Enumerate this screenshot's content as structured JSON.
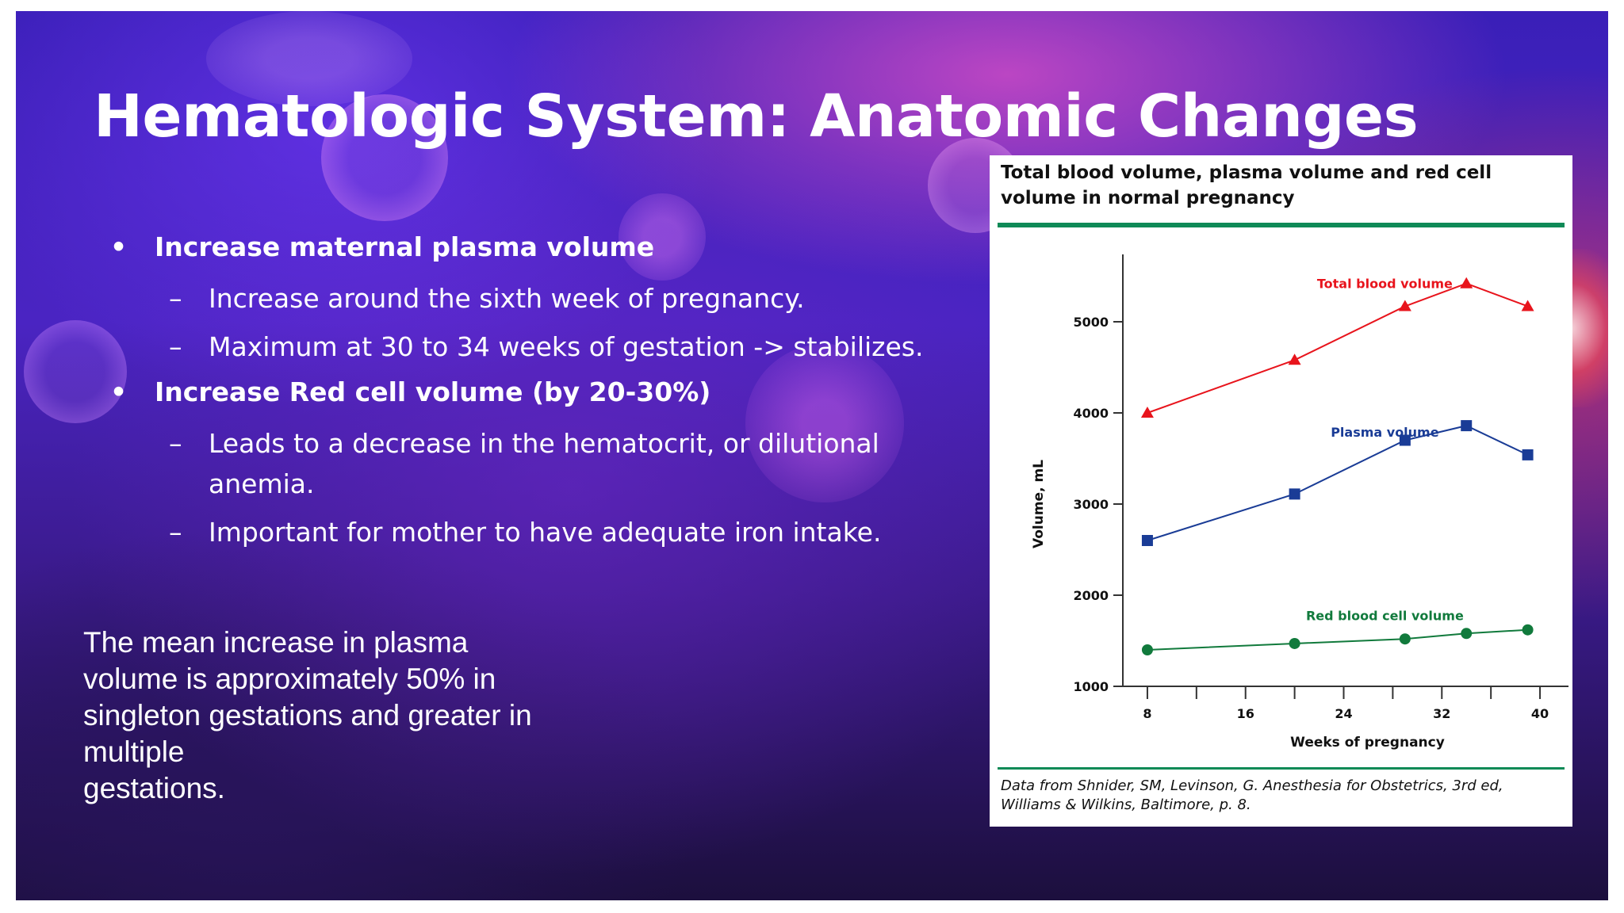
{
  "slide": {
    "title": "Hematologic System: Anatomic Changes",
    "bullets": [
      {
        "level": 1,
        "marker": "•",
        "text": "Increase maternal plasma volume"
      },
      {
        "level": 2,
        "marker": "–",
        "text": "Increase around the sixth week of pregnancy."
      },
      {
        "level": 2,
        "marker": "–",
        "text": "Maximum at 30 to 34 weeks of gestation -> stabilizes."
      },
      {
        "level": 1,
        "marker": "•",
        "text": "Increase Red cell volume (by 20-30%)"
      },
      {
        "level": 2,
        "marker": "–",
        "text": "Leads to a decrease in the hematocrit, or dilutional anemia."
      },
      {
        "level": 2,
        "marker": "–",
        "text": "Important for mother to have adequate iron intake."
      }
    ],
    "note_lines": [
      "The mean increase in plasma",
      "volume is approximately 50% in",
      "singleton gestations and greater in",
      "multiple",
      "gestations."
    ]
  },
  "figure": {
    "title": "Total blood volume, plasma volume and red cell volume in normal pregnancy",
    "source": "Data from Shnider, SM, Levinson, G. Anesthesia for Obstetrics, 3rd ed, Williams & Wilkins, Baltimore, p. 8.",
    "accent_color": "#0f8a57"
  },
  "chart_data": {
    "type": "line",
    "title": "Total blood volume, plasma volume and red cell volume in normal pregnancy",
    "xlabel": "Weeks of pregnancy",
    "ylabel": "Volume, mL",
    "xlim": [
      6,
      42
    ],
    "ylim": [
      1000,
      5500
    ],
    "x_ticks": [
      8,
      16,
      24,
      32,
      40
    ],
    "x_minor_ticks": [
      12,
      20,
      28,
      36
    ],
    "y_ticks": [
      1000,
      2000,
      3000,
      4000,
      5000
    ],
    "grid": false,
    "series": [
      {
        "name": "Total blood volume",
        "color": "#e8141c",
        "marker": "triangle",
        "x": [
          8,
          20,
          29,
          34,
          39
        ],
        "y": [
          4000,
          4580,
          5170,
          5420,
          5170
        ]
      },
      {
        "name": "Plasma volume",
        "color": "#1a3c96",
        "marker": "square",
        "x": [
          8,
          20,
          29,
          34,
          39
        ],
        "y": [
          2600,
          3110,
          3700,
          3860,
          3540
        ]
      },
      {
        "name": "Red blood cell volume",
        "color": "#117a3c",
        "marker": "circle",
        "x": [
          8,
          20,
          29,
          34,
          39
        ],
        "y": [
          1400,
          1470,
          1520,
          1580,
          1620
        ]
      }
    ]
  }
}
